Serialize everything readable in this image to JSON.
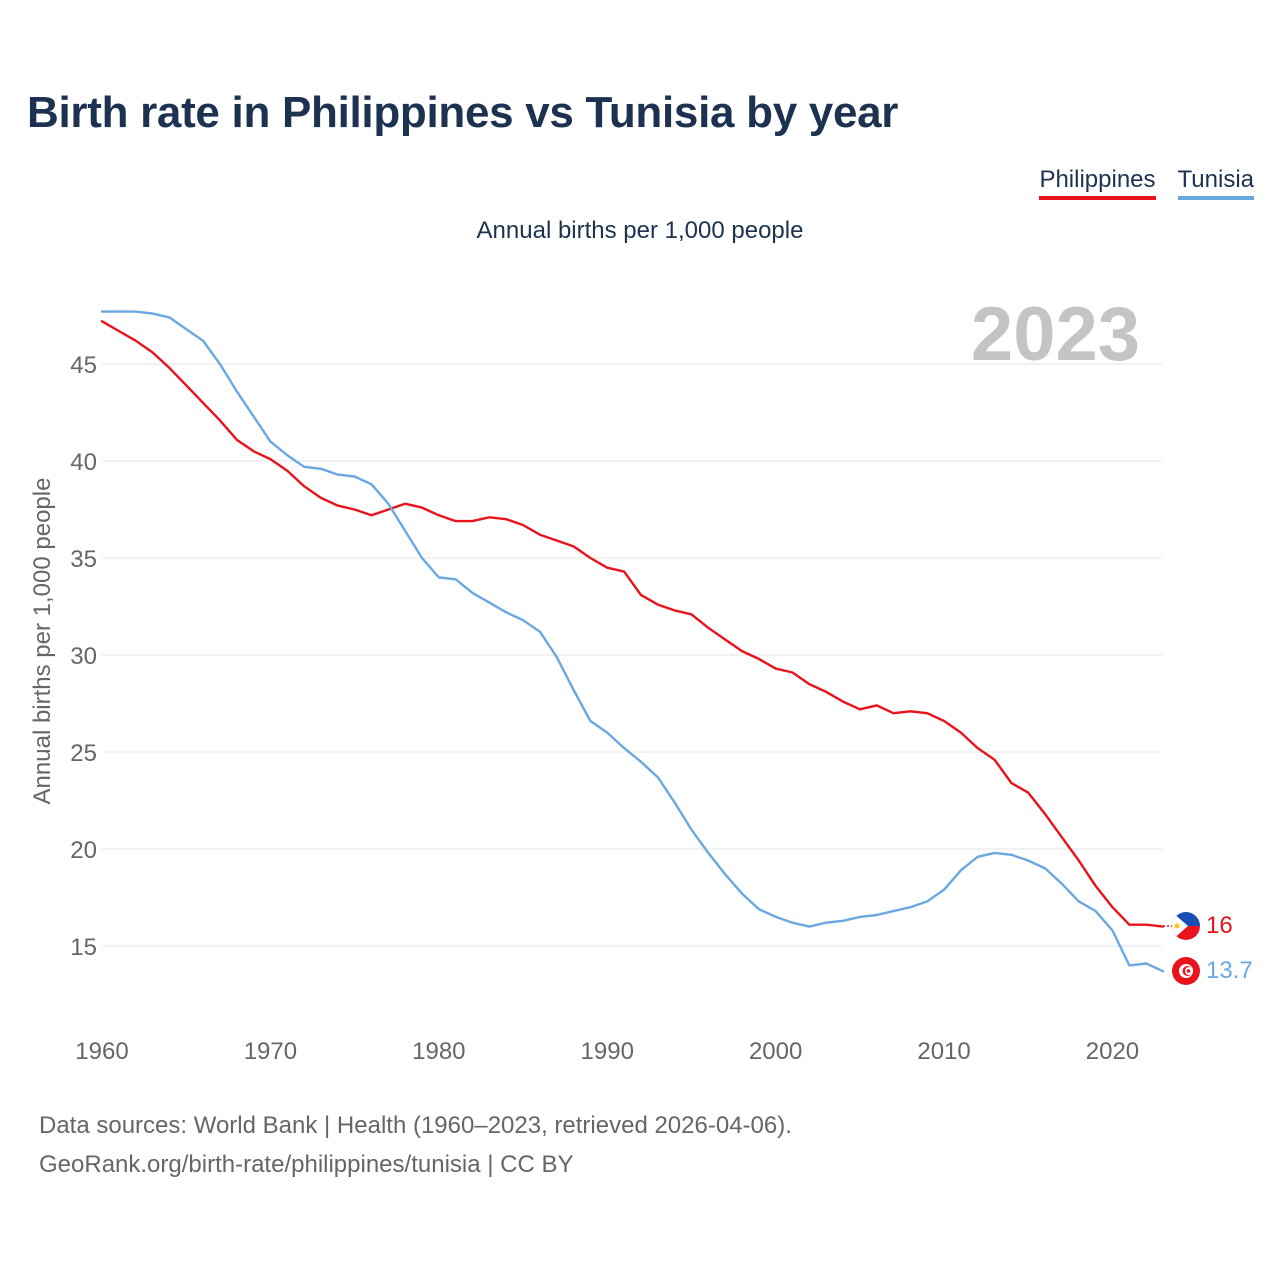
{
  "title": "Birth rate in Philippines vs Tunisia by year",
  "legend": [
    {
      "label": "Philippines",
      "color": "#e8131b"
    },
    {
      "label": "Tunisia",
      "color": "#6aa8e2"
    }
  ],
  "source_lines": [
    "Data sources: World Bank | Health (1960–2023, retrieved 2026-04-06).",
    "GeoRank.org/birth-rate/philippines/tunisia | CC BY"
  ],
  "chart_data": {
    "type": "line",
    "title": "Birth rate in Philippines vs Tunisia by year",
    "subtitle": "Annual births per 1,000 people",
    "xlabel": "",
    "ylabel": "Annual births per 1,000 people",
    "year_watermark": "2023",
    "xlim": [
      1960,
      2023
    ],
    "ylim": [
      11,
      48
    ],
    "x_ticks": [
      1960,
      1970,
      1980,
      1990,
      2000,
      2010,
      2020
    ],
    "y_ticks": [
      15,
      20,
      25,
      30,
      35,
      40,
      45
    ],
    "grid": true,
    "legend_position": "top-right",
    "x": [
      1960,
      1961,
      1962,
      1963,
      1964,
      1965,
      1966,
      1967,
      1968,
      1969,
      1970,
      1971,
      1972,
      1973,
      1974,
      1975,
      1976,
      1977,
      1978,
      1979,
      1980,
      1981,
      1982,
      1983,
      1984,
      1985,
      1986,
      1987,
      1988,
      1989,
      1990,
      1991,
      1992,
      1993,
      1994,
      1995,
      1996,
      1997,
      1998,
      1999,
      2000,
      2001,
      2002,
      2003,
      2004,
      2005,
      2006,
      2007,
      2008,
      2009,
      2010,
      2011,
      2012,
      2013,
      2014,
      2015,
      2016,
      2017,
      2018,
      2019,
      2020,
      2021,
      2022,
      2023
    ],
    "series": [
      {
        "name": "Philippines",
        "color": "#e8131b",
        "end_label": "16",
        "values": [
          47.2,
          46.7,
          46.2,
          45.6,
          44.8,
          43.9,
          43.0,
          42.1,
          41.1,
          40.5,
          40.1,
          39.5,
          38.7,
          38.1,
          37.7,
          37.5,
          37.2,
          37.5,
          37.8,
          37.6,
          37.2,
          36.9,
          36.9,
          37.1,
          37.0,
          36.7,
          36.2,
          35.9,
          35.6,
          35.0,
          34.5,
          34.3,
          33.1,
          32.6,
          32.3,
          32.1,
          31.4,
          30.8,
          30.2,
          29.8,
          29.3,
          29.1,
          28.5,
          28.1,
          27.6,
          27.2,
          27.4,
          27.0,
          27.1,
          27.0,
          26.6,
          26.0,
          25.2,
          24.6,
          23.4,
          22.9,
          21.8,
          20.6,
          19.4,
          18.1,
          17.0,
          16.1,
          16.1,
          16.0
        ]
      },
      {
        "name": "Tunisia",
        "color": "#6aa8e2",
        "end_label": "13.7",
        "values": [
          47.7,
          47.7,
          47.7,
          47.6,
          47.4,
          46.8,
          46.2,
          45.0,
          43.6,
          42.3,
          41.0,
          40.3,
          39.7,
          39.6,
          39.3,
          39.2,
          38.8,
          37.8,
          36.4,
          35.0,
          34.0,
          33.9,
          33.2,
          32.7,
          32.2,
          31.8,
          31.2,
          29.9,
          28.2,
          26.6,
          26.0,
          25.2,
          24.5,
          23.7,
          22.4,
          21.0,
          19.8,
          18.7,
          17.7,
          16.9,
          16.5,
          16.2,
          16.0,
          16.2,
          16.3,
          16.5,
          16.6,
          16.8,
          17.0,
          17.3,
          17.9,
          18.9,
          19.6,
          19.8,
          19.7,
          19.4,
          19.0,
          18.2,
          17.3,
          16.8,
          15.8,
          14.0,
          14.1,
          13.7
        ]
      }
    ]
  }
}
